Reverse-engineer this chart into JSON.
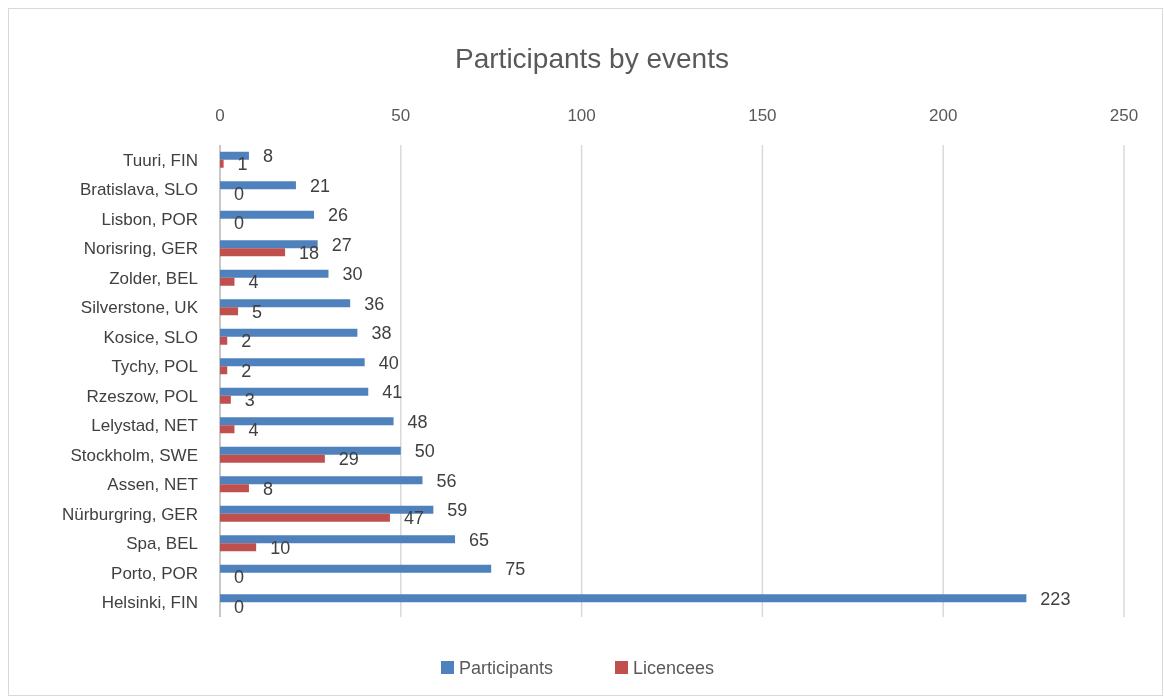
{
  "chart_data": {
    "type": "bar",
    "orientation": "horizontal",
    "title": "Participants by events",
    "categories": [
      "Tuuri, FIN",
      "Bratislava, SLO",
      "Lisbon, POR",
      "Norisring, GER",
      "Zolder, BEL",
      "Silverstone, UK",
      "Kosice, SLO",
      "Tychy, POL",
      "Rzeszow, POL",
      "Lelystad, NET",
      "Stockholm, SWE",
      "Assen, NET",
      "Nürburgring, GER",
      "Spa, BEL",
      "Porto, POR",
      "Helsinki, FIN"
    ],
    "series": [
      {
        "name": "Participants",
        "color": "#4f81bd",
        "values": [
          8,
          21,
          26,
          27,
          30,
          36,
          38,
          40,
          41,
          48,
          50,
          56,
          59,
          65,
          75,
          223
        ]
      },
      {
        "name": "Licencees",
        "color": "#c0504d",
        "values": [
          1,
          0,
          0,
          18,
          4,
          5,
          2,
          2,
          3,
          4,
          29,
          8,
          47,
          10,
          0,
          0
        ]
      }
    ],
    "xlim": [
      0,
      250
    ],
    "xticks": [
      0,
      50,
      100,
      150,
      200,
      250
    ],
    "grid": "x",
    "legend": "bottom",
    "data_labels": true
  }
}
